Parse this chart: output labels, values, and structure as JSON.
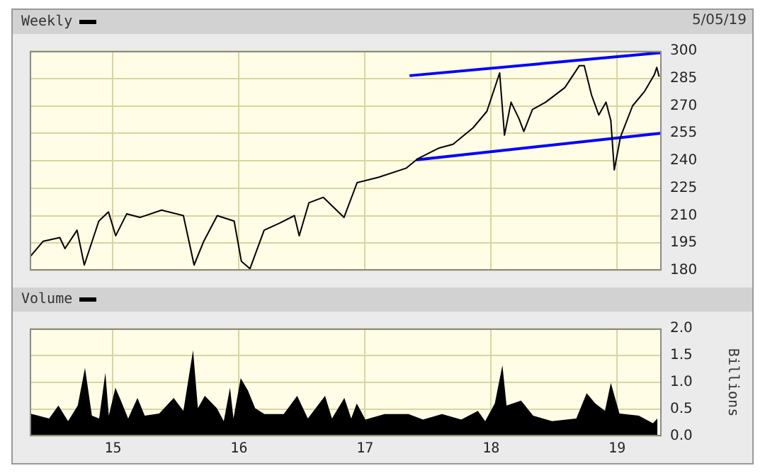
{
  "chart_data": [
    {
      "type": "line",
      "legend": "top left",
      "annotations": [
        "5/05/19"
      ],
      "xlim": [
        "2014-05-05",
        "2019-05-10"
      ],
      "xticks": [
        {
          "value": "2015-01-01",
          "label": null
        },
        {
          "value": "2016-01-01",
          "label": null
        },
        {
          "value": "2017-01-01",
          "label": null
        },
        {
          "value": "2018-01-01",
          "label": null
        },
        {
          "value": "2019-01-01",
          "label": null
        }
      ],
      "ylim": [
        180,
        300
      ],
      "yticks": [
        180,
        195,
        210,
        225,
        240,
        255,
        270,
        285,
        300
      ],
      "grid": true,
      "tick_labels": "y",
      "series": [
        {
          "name": "Weekly",
          "color": "#000000",
          "x": [
            "2014-05-08",
            "2014-06-13",
            "2014-07-31",
            "2014-08-15",
            "2014-09-19",
            "2014-10-10",
            "2014-11-21",
            "2014-12-19",
            "2015-01-09",
            "2015-02-10",
            "2015-03-20",
            "2015-05-22",
            "2015-07-24",
            "2015-08-24",
            "2015-09-21",
            "2015-10-30",
            "2015-12-18",
            "2016-01-08",
            "2016-02-02",
            "2016-03-14",
            "2016-04-29",
            "2016-06-10",
            "2016-06-24",
            "2016-07-22",
            "2016-09-02",
            "2016-11-01",
            "2016-12-09",
            "2017-02-10",
            "2017-05-01",
            "2017-06-02",
            "2017-08-04",
            "2017-09-13",
            "2017-11-10",
            "2017-12-20",
            "2018-01-26",
            "2018-02-09",
            "2018-02-28",
            "2018-03-23",
            "2018-04-06",
            "2018-05-01",
            "2018-06-08",
            "2018-08-03",
            "2018-09-14",
            "2018-09-28",
            "2018-10-19",
            "2018-11-09",
            "2018-11-30",
            "2018-12-14",
            "2018-12-24",
            "2019-01-11",
            "2019-02-15",
            "2019-03-22",
            "2019-04-19",
            "2019-04-26",
            "2019-05-03"
          ],
          "values": [
            188,
            196,
            198,
            192,
            202,
            183,
            207,
            212,
            199,
            211,
            209,
            213,
            210,
            183,
            196,
            210,
            207,
            185,
            181,
            202,
            206,
            210,
            199,
            217,
            220,
            209,
            228,
            231,
            236,
            241,
            247,
            249,
            258,
            267,
            288,
            254,
            272,
            263,
            256,
            268,
            272,
            280,
            292,
            292,
            276,
            265,
            272,
            262,
            235,
            253,
            270,
            278,
            287,
            291,
            286
          ]
        },
        {
          "type": "line",
          "color": "#0000ff",
          "x": [
            "2017-05-10",
            "2019-05-06"
          ],
          "values": [
            286.5,
            299
          ]
        },
        {
          "type": "line",
          "color": "#0000ff",
          "x": [
            "2017-05-30",
            "2019-05-06"
          ],
          "values": [
            240.5,
            255
          ]
        }
      ]
    },
    {
      "type": "area",
      "legend": "top left",
      "ylabel": "Billions",
      "xlim": [
        "2014-05-05",
        "2019-05-10"
      ],
      "xticks": [
        {
          "value": "2015-01-01",
          "label": "15"
        },
        {
          "value": "2016-01-01",
          "label": "16"
        },
        {
          "value": "2017-01-01",
          "label": "17"
        },
        {
          "value": "2018-01-01",
          "label": "18"
        },
        {
          "value": "2019-01-01",
          "label": "19"
        }
      ],
      "ylim": [
        0,
        2
      ],
      "yticks": [
        {
          "value": 0,
          "label": "0.0"
        },
        {
          "value": 0.5,
          "label": "0.5"
        },
        {
          "value": 1,
          "label": "1.0"
        },
        {
          "value": 1.5,
          "label": "1.5"
        },
        {
          "value": 2,
          "label": "2.0"
        }
      ],
      "grid": true,
      "series": [
        {
          "name": "Volume",
          "color": "#000000",
          "x": [
            "2014-05-06",
            "2014-06-30",
            "2014-07-27",
            "2014-08-24",
            "2014-09-21",
            "2014-10-12",
            "2014-11-01",
            "2014-11-22",
            "2014-12-10",
            "2014-12-20",
            "2015-01-08",
            "2015-01-24",
            "2015-02-14",
            "2015-03-13",
            "2015-04-03",
            "2015-05-15",
            "2015-06-26",
            "2015-07-24",
            "2015-08-21",
            "2015-09-04",
            "2015-09-24",
            "2015-10-29",
            "2015-11-18",
            "2015-12-06",
            "2015-12-16",
            "2016-01-06",
            "2016-01-27",
            "2016-02-17",
            "2016-03-15",
            "2016-05-10",
            "2016-06-18",
            "2016-07-19",
            "2016-09-07",
            "2016-09-27",
            "2016-11-02",
            "2016-11-22",
            "2016-12-08",
            "2017-01-02",
            "2017-02-27",
            "2017-05-07",
            "2017-06-18",
            "2017-08-12",
            "2017-10-07",
            "2017-11-24",
            "2017-12-15",
            "2018-01-12",
            "2018-02-03",
            "2018-02-15",
            "2018-03-29",
            "2018-05-03",
            "2018-06-27",
            "2018-09-05",
            "2018-10-05",
            "2018-10-30",
            "2018-11-27",
            "2018-12-14",
            "2019-01-08",
            "2019-03-05",
            "2019-04-15",
            "2019-04-28"
          ],
          "values": [
            0.42,
            0.33,
            0.57,
            0.28,
            0.57,
            1.27,
            0.38,
            0.33,
            1.18,
            0.38,
            0.9,
            0.66,
            0.33,
            0.71,
            0.38,
            0.42,
            0.71,
            0.47,
            1.6,
            0.52,
            0.75,
            0.52,
            0.28,
            0.9,
            0.33,
            1.08,
            0.85,
            0.52,
            0.41,
            0.41,
            0.75,
            0.33,
            0.75,
            0.33,
            0.71,
            0.33,
            0.61,
            0.31,
            0.41,
            0.41,
            0.31,
            0.41,
            0.31,
            0.47,
            0.28,
            0.61,
            1.32,
            0.57,
            0.66,
            0.38,
            0.28,
            0.33,
            0.8,
            0.61,
            0.47,
            0.99,
            0.42,
            0.38,
            0.24,
            0.33
          ]
        }
      ]
    }
  ]
}
